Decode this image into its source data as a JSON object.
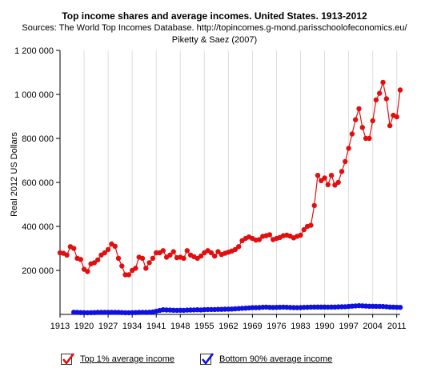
{
  "header": {
    "title": "Top income shares and average incomes. United States. 1913-2012",
    "source_line1": "Sources: The World Top Incomes Database. http://topincomes.g-mond.parisschoolofeconomics.eu/",
    "source_line2": "Piketty & Saez (2007)"
  },
  "legend": [
    {
      "label": "Top 1% average income",
      "color": "#e01010"
    },
    {
      "label": "Bottom 90% average income",
      "color": "#1010e0"
    }
  ],
  "chart_data": {
    "type": "line",
    "title": "Top income shares and average incomes. United States. 1913-2012",
    "ylabel": "Real 2012 US Dollars",
    "xlabel": "",
    "xlim": [
      1913,
      2012
    ],
    "ylim": [
      0,
      1200000
    ],
    "x_ticks": [
      1913,
      1920,
      1927,
      1934,
      1941,
      1948,
      1955,
      1962,
      1969,
      1976,
      1983,
      1990,
      1997,
      2004,
      2011
    ],
    "y_ticks": [
      200000,
      400000,
      600000,
      800000,
      1000000,
      1200000
    ],
    "y_tick_labels": [
      "200 000",
      "400 000",
      "600 000",
      "800 000",
      "1 000 000",
      "1 200 000"
    ],
    "grid": "vertical",
    "legend_position": "bottom",
    "series": [
      {
        "name": "Top 1% average income",
        "color": "#e01010",
        "x": [
          1913,
          1914,
          1915,
          1916,
          1917,
          1918,
          1919,
          1920,
          1921,
          1922,
          1923,
          1924,
          1925,
          1926,
          1927,
          1928,
          1929,
          1930,
          1931,
          1932,
          1933,
          1934,
          1935,
          1936,
          1937,
          1938,
          1939,
          1940,
          1941,
          1942,
          1943,
          1944,
          1945,
          1946,
          1947,
          1948,
          1949,
          1950,
          1951,
          1952,
          1953,
          1954,
          1955,
          1956,
          1957,
          1958,
          1959,
          1960,
          1961,
          1962,
          1963,
          1964,
          1965,
          1966,
          1967,
          1968,
          1969,
          1970,
          1971,
          1972,
          1973,
          1974,
          1975,
          1976,
          1977,
          1978,
          1979,
          1980,
          1981,
          1982,
          1983,
          1984,
          1985,
          1986,
          1987,
          1988,
          1989,
          1990,
          1991,
          1992,
          1993,
          1994,
          1995,
          1996,
          1997,
          1998,
          1999,
          2000,
          2001,
          2002,
          2003,
          2004,
          2005,
          2006,
          2007,
          2008,
          2009,
          2010,
          2011,
          2012
        ],
        "values": [
          280000,
          278000,
          270000,
          308000,
          300000,
          255000,
          250000,
          205000,
          195000,
          230000,
          235000,
          248000,
          270000,
          280000,
          295000,
          320000,
          310000,
          255000,
          220000,
          180000,
          180000,
          200000,
          210000,
          260000,
          255000,
          210000,
          235000,
          255000,
          280000,
          280000,
          290000,
          260000,
          270000,
          285000,
          258000,
          260000,
          255000,
          290000,
          270000,
          262000,
          255000,
          265000,
          280000,
          290000,
          280000,
          265000,
          285000,
          272000,
          278000,
          283000,
          288000,
          295000,
          308000,
          335000,
          345000,
          352000,
          345000,
          338000,
          340000,
          355000,
          358000,
          362000,
          340000,
          345000,
          350000,
          358000,
          360000,
          356000,
          348000,
          355000,
          360000,
          385000,
          400000,
          405000,
          495000,
          632000,
          608000,
          620000,
          590000,
          632000,
          588000,
          600000,
          650000,
          695000,
          755000,
          820000,
          885000,
          935000,
          850000,
          800000,
          800000,
          880000,
          975000,
          1005000,
          1055000,
          980000,
          858000,
          905000,
          898000,
          1020000
        ]
      },
      {
        "name": "Bottom 90% average income",
        "color": "#1010e0",
        "x": [
          1917,
          1918,
          1919,
          1920,
          1921,
          1922,
          1923,
          1924,
          1925,
          1926,
          1927,
          1928,
          1929,
          1930,
          1931,
          1932,
          1933,
          1934,
          1935,
          1936,
          1937,
          1938,
          1939,
          1940,
          1941,
          1942,
          1943,
          1944,
          1945,
          1946,
          1947,
          1948,
          1949,
          1950,
          1951,
          1952,
          1953,
          1954,
          1955,
          1956,
          1957,
          1958,
          1959,
          1960,
          1961,
          1962,
          1963,
          1964,
          1965,
          1966,
          1967,
          1968,
          1969,
          1970,
          1971,
          1972,
          1973,
          1974,
          1975,
          1976,
          1977,
          1978,
          1979,
          1980,
          1981,
          1982,
          1983,
          1984,
          1985,
          1986,
          1987,
          1988,
          1989,
          1990,
          1991,
          1992,
          1993,
          1994,
          1995,
          1996,
          1997,
          1998,
          1999,
          2000,
          2001,
          2002,
          2003,
          2004,
          2005,
          2006,
          2007,
          2008,
          2009,
          2010,
          2011,
          2012
        ],
        "values": [
          10000,
          9000,
          8500,
          8000,
          7500,
          8000,
          8500,
          9000,
          9000,
          9500,
          9500,
          9500,
          9500,
          9000,
          8500,
          7500,
          7500,
          8000,
          8500,
          9000,
          9500,
          9000,
          10000,
          11000,
          14000,
          18000,
          21000,
          20000,
          19500,
          19000,
          18500,
          19000,
          18500,
          19500,
          20000,
          20500,
          21000,
          20500,
          21500,
          22000,
          22000,
          22000,
          23000,
          23000,
          23500,
          24000,
          24500,
          25500,
          26500,
          27500,
          28500,
          29500,
          30500,
          30500,
          31000,
          32500,
          33000,
          32000,
          31500,
          32000,
          32500,
          33000,
          32500,
          31500,
          31000,
          30500,
          31000,
          32000,
          32500,
          33000,
          33500,
          33500,
          33500,
          33500,
          33000,
          33500,
          33500,
          34000,
          34500,
          35000,
          36000,
          37500,
          38500,
          39500,
          39000,
          38000,
          37000,
          37000,
          36500,
          36500,
          36000,
          35000,
          33500,
          33000,
          32500,
          32000
        ]
      }
    ]
  }
}
